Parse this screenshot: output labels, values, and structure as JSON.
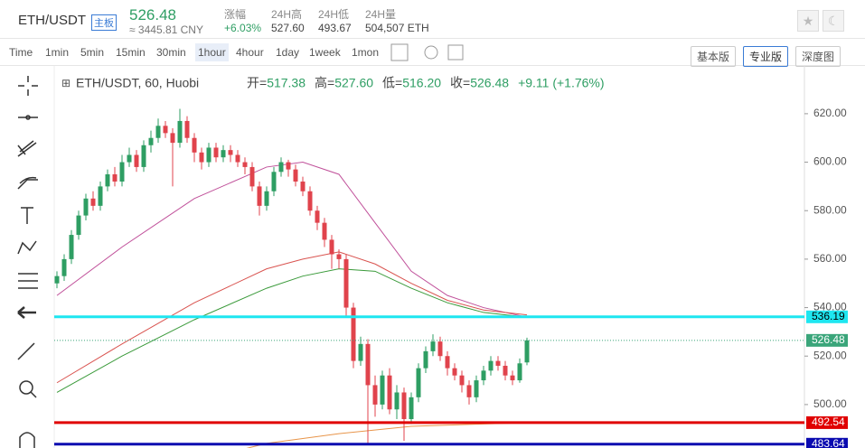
{
  "header": {
    "pair": "ETH/USDT",
    "badge": "主板",
    "price": "526.48",
    "cny": "≈ 3445.81 CNY",
    "stats": [
      {
        "label": "涨幅",
        "value": "+6.03%"
      },
      {
        "label": "24H高",
        "value": "527.60"
      },
      {
        "label": "24H低",
        "value": "493.67"
      },
      {
        "label": "24H量",
        "value": "504,507 ETH"
      }
    ]
  },
  "toolbar": {
    "periods": [
      "Time",
      "1min",
      "5min",
      "15min",
      "30min",
      "1hour",
      "4hour",
      "1day",
      "1week",
      "1mon"
    ],
    "selected": 5,
    "views": [
      "基本版",
      "专业版",
      "深度图"
    ],
    "selected_view": 1
  },
  "chart_data": {
    "type": "candlestick",
    "title": "ETH/USDT, 60, Huobi",
    "ohlc": [
      {
        "label": "开=",
        "value": "517.38"
      },
      {
        "label": "高=",
        "value": "527.60"
      },
      {
        "label": "低=",
        "value": "516.20"
      },
      {
        "label": "收=",
        "value": "526.48"
      }
    ],
    "change": "+9.11 (+1.76%)",
    "up_color": "#2e9e63",
    "down_color": "#e0434c",
    "ylim": [
      483.64,
      627.6
    ],
    "yticks": [
      {
        "value": 500,
        "label": "500.00"
      },
      {
        "value": 520,
        "label": "520.00"
      },
      {
        "value": 540,
        "label": "540.00"
      },
      {
        "value": 560,
        "label": "560.00"
      },
      {
        "value": 580,
        "label": "580.00"
      },
      {
        "value": 600,
        "label": "600.00"
      },
      {
        "value": 620,
        "label": "620.00"
      }
    ],
    "levels": [
      {
        "value": 536.19,
        "label": "536.19",
        "color": "#1ee6f0"
      },
      {
        "value": 492.54,
        "label": "492.54",
        "color": "#e00000"
      },
      {
        "value": 483.64,
        "label": "483.64",
        "color": "#0a0ab0"
      }
    ],
    "last": {
      "value": 526.48,
      "label": "526.48",
      "color": "#3aa57a"
    },
    "candles": [
      [
        550,
        555,
        548,
        553
      ],
      [
        553,
        562,
        551,
        560
      ],
      [
        560,
        572,
        558,
        570
      ],
      [
        570,
        580,
        568,
        578
      ],
      [
        578,
        587,
        576,
        585
      ],
      [
        585,
        588,
        580,
        582
      ],
      [
        582,
        592,
        580,
        590
      ],
      [
        590,
        597,
        588,
        595
      ],
      [
        595,
        598,
        590,
        592
      ],
      [
        592,
        603,
        590,
        600
      ],
      [
        600,
        606,
        598,
        603
      ],
      [
        603,
        605,
        596,
        598
      ],
      [
        598,
        609,
        596,
        607
      ],
      [
        607,
        613,
        604,
        610
      ],
      [
        610,
        618,
        608,
        615
      ],
      [
        615,
        617,
        610,
        612
      ],
      [
        612,
        614,
        590,
        608
      ],
      [
        608,
        622,
        606,
        617
      ],
      [
        617,
        619,
        608,
        610
      ],
      [
        610,
        612,
        600,
        604
      ],
      [
        604,
        606,
        597,
        600
      ],
      [
        600,
        608,
        598,
        606
      ],
      [
        606,
        608,
        600,
        602
      ],
      [
        602,
        607,
        600,
        605
      ],
      [
        605,
        607,
        600,
        603
      ],
      [
        603,
        605,
        598,
        600
      ],
      [
        600,
        602,
        595,
        598
      ],
      [
        598,
        600,
        588,
        590
      ],
      [
        590,
        592,
        578,
        582
      ],
      [
        582,
        590,
        580,
        588
      ],
      [
        588,
        598,
        586,
        596
      ],
      [
        596,
        602,
        594,
        600
      ],
      [
        600,
        601,
        594,
        597
      ],
      [
        597,
        599,
        590,
        592
      ],
      [
        592,
        594,
        586,
        588
      ],
      [
        588,
        590,
        578,
        580
      ],
      [
        580,
        582,
        572,
        575
      ],
      [
        575,
        577,
        565,
        568
      ],
      [
        568,
        570,
        556,
        562
      ],
      [
        562,
        564,
        556,
        560
      ],
      [
        560,
        562,
        536,
        540
      ],
      [
        540,
        542,
        515,
        518
      ],
      [
        518,
        528,
        516,
        525
      ],
      [
        525,
        527,
        484,
        508
      ],
      [
        508,
        512,
        495,
        500
      ],
      [
        500,
        514,
        498,
        512
      ],
      [
        512,
        515,
        496,
        498
      ],
      [
        498,
        508,
        494,
        505
      ],
      [
        505,
        507,
        485,
        494
      ],
      [
        494,
        505,
        492,
        503
      ],
      [
        503,
        517,
        501,
        515
      ],
      [
        515,
        524,
        513,
        522
      ],
      [
        522,
        529,
        520,
        526
      ],
      [
        526,
        528,
        518,
        520
      ],
      [
        520,
        522,
        512,
        515
      ],
      [
        515,
        517,
        510,
        512
      ],
      [
        512,
        514,
        505,
        508
      ],
      [
        508,
        510,
        500,
        503
      ],
      [
        503,
        512,
        501,
        510
      ],
      [
        510,
        516,
        508,
        514
      ],
      [
        514,
        520,
        512,
        518
      ],
      [
        518,
        520,
        514,
        516
      ],
      [
        516,
        518,
        510,
        512
      ],
      [
        512,
        514,
        508,
        510
      ],
      [
        510,
        519,
        509,
        517
      ],
      [
        517.38,
        527.6,
        516.2,
        526.48
      ]
    ],
    "lines": [
      {
        "color": "#c0509a",
        "x": [
          1,
          10,
          20,
          30,
          35,
          40,
          45,
          50,
          55,
          60,
          66
        ],
        "values": [
          545,
          565,
          585,
          598,
          600,
          595,
          575,
          555,
          545,
          540,
          536
        ]
      },
      {
        "color": "#d9534f",
        "x": [
          1,
          10,
          20,
          30,
          35,
          40,
          45,
          50,
          55,
          60,
          66
        ],
        "values": [
          509,
          525,
          542,
          556,
          560,
          563,
          558,
          550,
          543,
          539,
          537
        ]
      },
      {
        "color": "#3a9a3a",
        "x": [
          1,
          10,
          20,
          30,
          35,
          40,
          45,
          50,
          55,
          60,
          66
        ],
        "values": [
          505,
          520,
          535,
          548,
          553,
          556,
          555,
          548,
          542,
          538,
          536
        ]
      },
      {
        "color": "#e8954a",
        "x": [
          22,
          30,
          40,
          50,
          60,
          66
        ],
        "values": [
          478,
          484,
          488,
          491,
          492,
          492.5
        ]
      }
    ]
  }
}
